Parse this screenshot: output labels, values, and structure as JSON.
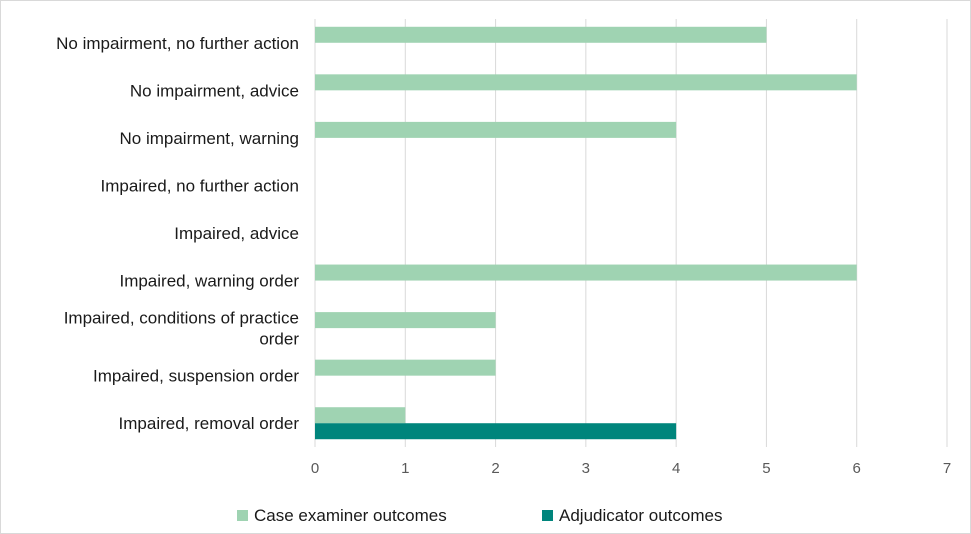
{
  "chart_data": {
    "type": "bar",
    "orientation": "horizontal",
    "categories": [
      "No impairment, no further action",
      "No impairment, advice",
      "No impairment, warning",
      "Impaired, no further action",
      "Impaired, advice",
      "Impaired, warning order",
      "Impaired, conditions of practice order",
      "Impaired, suspension order",
      "Impaired, removal order"
    ],
    "category_label_lines": [
      [
        "No impairment, no further action"
      ],
      [
        "No impairment, advice"
      ],
      [
        "No impairment, warning"
      ],
      [
        "Impaired, no further action"
      ],
      [
        "Impaired, advice"
      ],
      [
        "Impaired, warning order"
      ],
      [
        "Impaired, conditions of practice",
        "order"
      ],
      [
        "Impaired, suspension order"
      ],
      [
        "Impaired, removal order"
      ]
    ],
    "series": [
      {
        "name": "Case examiner outcomes",
        "color": "#9fd3b2",
        "values": [
          5,
          6,
          4,
          0,
          0,
          6,
          2,
          2,
          1
        ]
      },
      {
        "name": "Adjudicator outcomes",
        "color": "#00857c",
        "values": [
          0,
          0,
          0,
          0,
          0,
          0,
          0,
          0,
          4
        ]
      }
    ],
    "xlim": [
      0,
      7
    ],
    "xticks": [
      0,
      1,
      2,
      3,
      4,
      5,
      6,
      7
    ],
    "grid": true,
    "legend_position": "bottom"
  }
}
